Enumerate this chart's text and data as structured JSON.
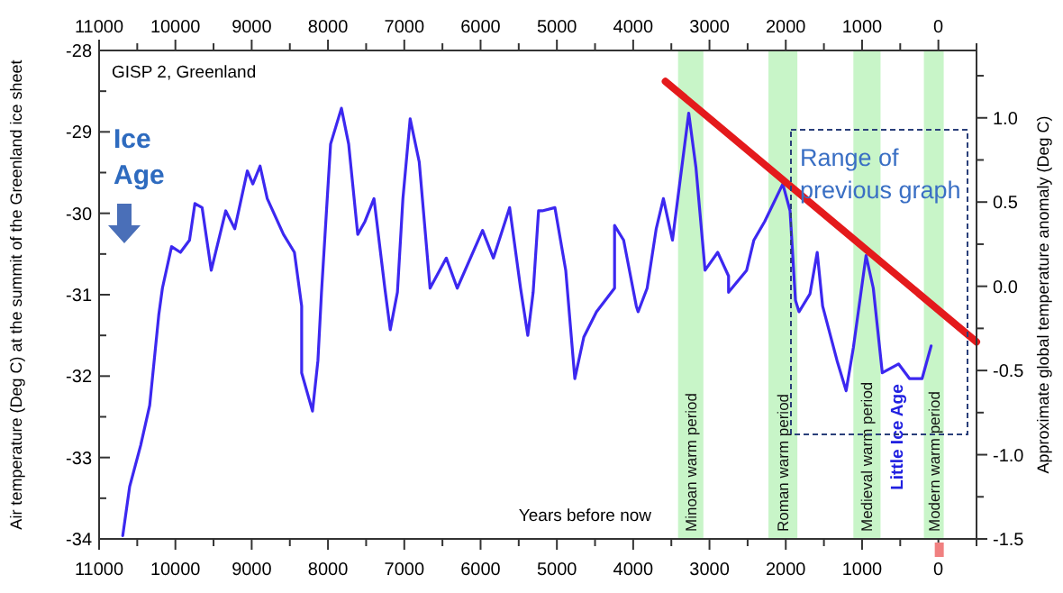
{
  "chart_data": {
    "type": "line",
    "title": "GISP 2, Greenland",
    "xlabel": "Years before now",
    "ylabel": "Air temperature (Deg C) at the summit of the Greenland ice sheet",
    "y2label": "Approximate global temperature anomaly (Deg C)",
    "xlim": [
      11000,
      -500
    ],
    "xticks": [
      11000,
      {
        "value": 10500,
        "label": null
      },
      10000,
      {
        "value": 9500,
        "label": null
      },
      9000,
      {
        "value": 8500,
        "label": null
      },
      8000,
      {
        "value": 7500,
        "label": null
      },
      7000,
      {
        "value": 6500,
        "label": null
      },
      6000,
      {
        "value": 5500,
        "label": null
      },
      5000,
      {
        "value": 4500,
        "label": null
      },
      4000,
      {
        "value": 3500,
        "label": null
      },
      3000,
      {
        "value": 2500,
        "label": null
      },
      2000,
      {
        "value": 1500,
        "label": null
      },
      1000,
      {
        "value": 500,
        "label": null
      },
      0,
      {
        "value": -500,
        "label": null
      }
    ],
    "x2lim": [
      11000,
      -500
    ],
    "x2ticks": [
      11000,
      {
        "value": 10500,
        "label": null
      },
      10000,
      {
        "value": 9500,
        "label": null
      },
      9000,
      {
        "value": 8500,
        "label": null
      },
      8000,
      {
        "value": 7500,
        "label": null
      },
      7000,
      {
        "value": 6500,
        "label": null
      },
      6000,
      {
        "value": 5500,
        "label": null
      },
      5000,
      {
        "value": 4500,
        "label": null
      },
      4000,
      {
        "value": 3500,
        "label": null
      },
      3000,
      {
        "value": 2500,
        "label": null
      },
      2000,
      {
        "value": 1500,
        "label": null
      },
      1000,
      {
        "value": 500,
        "label": null
      },
      0,
      {
        "value": -500,
        "label": null
      }
    ],
    "ylim": [
      -34,
      -28
    ],
    "yticks": [
      -34,
      {
        "value": -33.5,
        "label": null
      },
      -33,
      {
        "value": -32.5,
        "label": null
      },
      -32,
      {
        "value": -31.5,
        "label": null
      },
      -31,
      {
        "value": -30.5,
        "label": null
      },
      -30,
      {
        "value": -29.5,
        "label": null
      },
      -29,
      {
        "value": -28.5,
        "label": null
      },
      -28
    ],
    "y2lim": [
      -1.5,
      1.4
    ],
    "y2ticks": [
      {
        "value": -1.5,
        "label": "-1.5"
      },
      {
        "value": -1.25,
        "label": null
      },
      {
        "value": -1,
        "label": "-1.0"
      },
      {
        "value": -0.75,
        "label": null
      },
      {
        "value": -0.5,
        "label": "-0.5"
      },
      {
        "value": -0.25,
        "label": null
      },
      {
        "value": 0,
        "label": "0.0"
      },
      {
        "value": 0.25,
        "label": null
      },
      {
        "value": 0.5,
        "label": "0.5"
      },
      {
        "value": 0.75,
        "label": null
      },
      {
        "value": 1,
        "label": "1.0"
      },
      {
        "value": 1.25,
        "label": null
      }
    ],
    "series": [
      {
        "color": "#3c28f0",
        "x": [
          10690,
          10600,
          10455,
          10337,
          10218,
          10170,
          10050,
          9934,
          9815,
          9744,
          9650,
          9530,
          9340,
          9222,
          9057,
          8985,
          8890,
          8796,
          8583,
          8440,
          8345,
          8345,
          8203,
          8132,
          8085,
          7966,
          7824,
          7729,
          7610,
          7515,
          7397,
          7255,
          7184,
          7090,
          7018,
          6923,
          6804,
          6662,
          6449,
          6306,
          5974,
          5832,
          5619,
          5476,
          5381,
          5311,
          5240,
          5192,
          5026,
          4884,
          4765,
          4647,
          4481,
          4244,
          4244,
          4125,
          3959,
          3935,
          3817,
          3698,
          3604,
          3485,
          3272,
          3177,
          3058,
          2892,
          2750,
          2750,
          2513,
          2418,
          2276,
          2039,
          1944,
          1873,
          1826,
          1683,
          1588,
          1517,
          1328,
          1209,
          1114,
          948,
          853,
          735,
          522,
          379,
          213,
          95
        ],
        "values": [
          -33.96,
          -33.36,
          -32.85,
          -32.36,
          -31.25,
          -30.92,
          -30.41,
          -30.48,
          -30.33,
          -29.88,
          -29.93,
          -30.7,
          -29.97,
          -30.19,
          -29.48,
          -29.64,
          -29.42,
          -29.82,
          -30.26,
          -30.48,
          -31.14,
          -31.96,
          -32.43,
          -31.81,
          -30.97,
          -29.15,
          -28.71,
          -29.15,
          -30.26,
          -30.1,
          -29.82,
          -30.92,
          -31.43,
          -30.97,
          -29.82,
          -28.84,
          -29.37,
          -30.92,
          -30.55,
          -30.92,
          -30.21,
          -30.55,
          -29.93,
          -30.92,
          -31.5,
          -30.97,
          -29.97,
          -29.97,
          -29.93,
          -30.7,
          -32.03,
          -31.52,
          -31.21,
          -30.92,
          -30.15,
          -30.33,
          -31.14,
          -31.21,
          -30.92,
          -30.19,
          -29.82,
          -30.33,
          -28.77,
          -29.44,
          -30.7,
          -30.48,
          -30.77,
          -30.97,
          -30.7,
          -30.33,
          -30.1,
          -29.64,
          -29.97,
          -31.07,
          -31.21,
          -30.99,
          -30.48,
          -31.14,
          -31.81,
          -32.18,
          -31.65,
          -30.52,
          -30.92,
          -31.96,
          -31.85,
          -32.03,
          -32.03,
          -31.63
        ]
      },
      {
        "type": "line",
        "color": "#e41a1c",
        "x": [
          3578,
          -500
        ],
        "values": [
          -28.38,
          -31.58
        ]
      }
    ],
    "bands": [
      {
        "axis": "x",
        "from": 3412,
        "to": 3080,
        "label": "Minoan warm period",
        "color": "#c8f5c8"
      },
      {
        "axis": "x",
        "from": 2227,
        "to": 1848,
        "label": "Roman warm period",
        "color": "#c8f5c8"
      },
      {
        "axis": "x",
        "from": 1114,
        "to": 758,
        "label": "Medieval warm period",
        "color": "#c8f5c8"
      },
      {
        "axis": "x",
        "from": 190,
        "to": -70,
        "label": "Modern warm period",
        "color": "#c8f5c8"
      }
    ],
    "annotations": [
      "Ice Age",
      "Little Ice Age",
      "Range of previous graph"
    ],
    "marker": "none",
    "line_style": "solid"
  }
}
